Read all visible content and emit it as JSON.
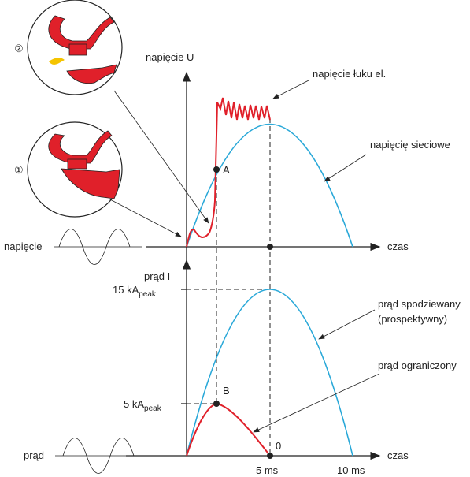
{
  "labels": {
    "state2": "②",
    "state1": "①",
    "voltage_axis": "napięcie U",
    "arc_voltage": "napięcie łuku el.",
    "grid_voltage": "napięcię sieciowe",
    "point_a": "A",
    "time_upper": "czas",
    "voltage_source": "napięcie",
    "current_axis": "prąd I",
    "peak15_main": "15 kA",
    "peak15_sub": "peak",
    "expected_current_1": "prąd spodziewany",
    "expected_current_2": "(prospektywny)",
    "limited_current": "prąd ograniczony",
    "point_b": "B",
    "peak5_main": "5 kA",
    "peak5_sub": "peak",
    "current_source": "prąd",
    "zero": "0",
    "t5": "5 ms",
    "t10": "10 ms",
    "time_lower": "czas"
  }
}
